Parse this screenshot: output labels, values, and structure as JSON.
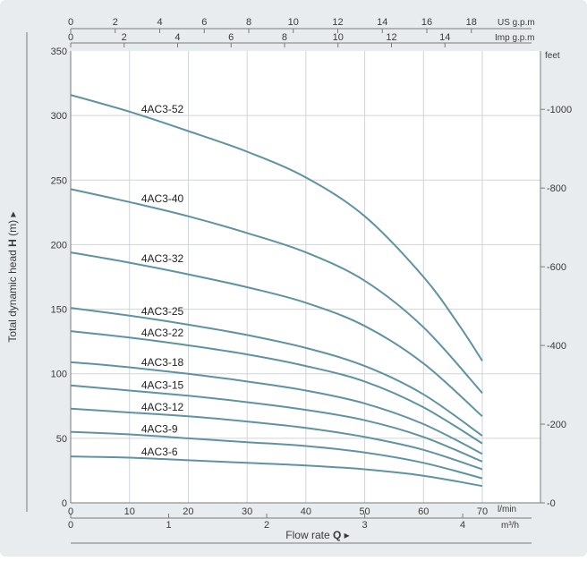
{
  "colors": {
    "background": "#e9ecee",
    "plot": "#ffffff",
    "grid": "#cfd5da",
    "curve": "#5f93a2",
    "text": "#3a3a3a",
    "axis": "#7a7a7a"
  },
  "chart_data": {
    "type": "line",
    "ylabel_text": "Total dynamic head",
    "ylabel_sym": "H",
    "ylabel_unit": "(m)",
    "xlabel_text": "Flow rate",
    "xlabel_sym": "Q",
    "x_lmin": {
      "unit": "l/min",
      "range": [
        0,
        70
      ],
      "ticks": [
        0,
        10,
        20,
        30,
        40,
        50,
        60,
        70
      ]
    },
    "x_m3h": {
      "unit": "m³/h",
      "ticks": [
        0,
        1,
        2,
        3,
        4
      ]
    },
    "x_usgpm": {
      "unit": "US g.p.m",
      "ticks": [
        0,
        2,
        4,
        6,
        8,
        10,
        12,
        14,
        16,
        18
      ]
    },
    "x_impgpm": {
      "unit": "Imp g.p.m",
      "ticks": [
        0,
        2,
        4,
        6,
        8,
        10,
        12,
        14
      ]
    },
    "y_m": {
      "range": [
        0,
        350
      ],
      "ticks": [
        0,
        50,
        100,
        150,
        200,
        250,
        300,
        350
      ]
    },
    "y_feet": {
      "unit": "feet",
      "ticks": [
        0,
        200,
        400,
        600,
        800,
        1000
      ]
    },
    "series": [
      {
        "name": "4AC3-52",
        "x": [
          0,
          10,
          20,
          30,
          40,
          50,
          60,
          66,
          70
        ],
        "y": [
          316,
          303,
          288,
          272,
          252,
          222,
          175,
          138,
          110
        ]
      },
      {
        "name": "4AC3-40",
        "x": [
          0,
          10,
          20,
          30,
          40,
          50,
          60,
          70
        ],
        "y": [
          243,
          233,
          222,
          209,
          194,
          172,
          136,
          85
        ]
      },
      {
        "name": "4AC3-32",
        "x": [
          0,
          10,
          20,
          30,
          40,
          50,
          60,
          70
        ],
        "y": [
          194,
          186,
          177,
          167,
          155,
          137,
          108,
          67
        ]
      },
      {
        "name": "4AC3-25",
        "x": [
          0,
          10,
          20,
          30,
          40,
          50,
          60,
          70
        ],
        "y": [
          151,
          145,
          138,
          130,
          120,
          106,
          84,
          52
        ]
      },
      {
        "name": "4AC3-22",
        "x": [
          0,
          10,
          20,
          30,
          40,
          50,
          60,
          70
        ],
        "y": [
          133,
          128,
          122,
          115,
          106,
          94,
          74,
          46
        ]
      },
      {
        "name": "4AC3-18",
        "x": [
          0,
          10,
          20,
          30,
          40,
          50,
          60,
          70
        ],
        "y": [
          109,
          105,
          100,
          94,
          87,
          77,
          61,
          38
        ]
      },
      {
        "name": "4AC3-15",
        "x": [
          0,
          10,
          20,
          30,
          40,
          50,
          60,
          70
        ],
        "y": [
          91,
          87,
          83,
          78,
          72,
          64,
          51,
          32
        ]
      },
      {
        "name": "4AC3-12",
        "x": [
          0,
          10,
          20,
          30,
          40,
          50,
          60,
          70
        ],
        "y": [
          73,
          70,
          67,
          63,
          58,
          51,
          41,
          26
        ]
      },
      {
        "name": "4AC3-9",
        "x": [
          0,
          10,
          20,
          30,
          40,
          50,
          60,
          70
        ],
        "y": [
          55,
          53,
          50,
          47,
          44,
          39,
          31,
          19
        ]
      },
      {
        "name": "4AC3-6",
        "x": [
          0,
          10,
          20,
          30,
          40,
          50,
          60,
          70
        ],
        "y": [
          36,
          35,
          33,
          31,
          29,
          26,
          21,
          13
        ]
      }
    ]
  }
}
